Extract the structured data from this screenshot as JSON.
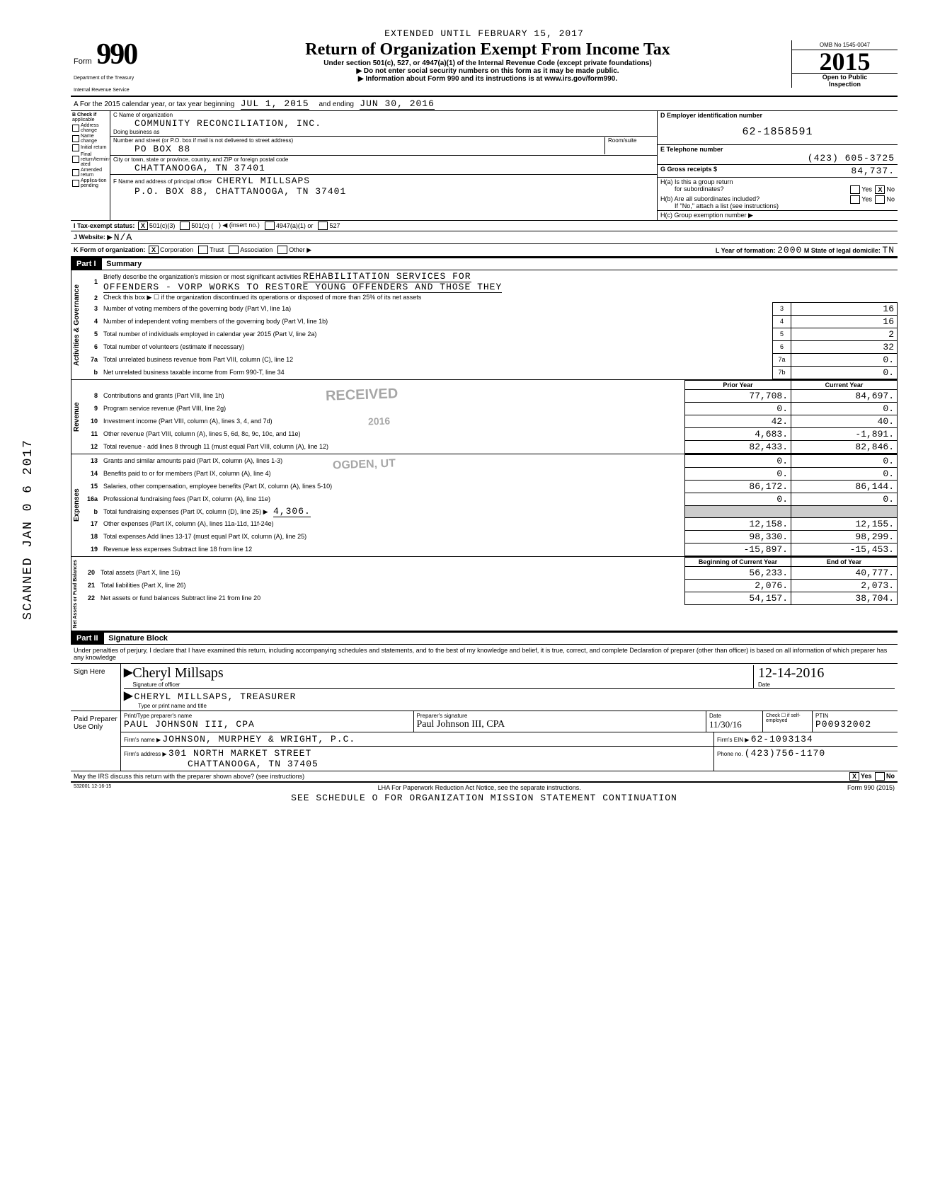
{
  "header": {
    "extension": "EXTENDED UNTIL FEBRUARY 15, 2017",
    "form_label": "Form",
    "form_number": "990",
    "title": "Return of Organization Exempt From Income Tax",
    "subtitle": "Under section 501(c), 527, or 4947(a)(1) of the Internal Revenue Code (except private foundations)",
    "bullet1": "▶ Do not enter social security numbers on this form as it may be made public.",
    "bullet2": "▶ Information about Form 990 and its instructions is at www.irs.gov/form990.",
    "dept1": "Department of the Treasury",
    "dept2": "Internal Revenue Service",
    "omb": "OMB No 1545-0047",
    "year": "2015",
    "open1": "Open to Public",
    "open2": "Inspection"
  },
  "line_a": {
    "prefix": "A For the 2015 calendar year, or tax year beginning",
    "begin": "JUL 1, 2015",
    "mid": "and ending",
    "end": "JUN 30, 2016"
  },
  "col_b": {
    "header1": "B Check if",
    "header2": "applicable",
    "items": [
      "Address change",
      "Name change",
      "Initial return",
      "Final return/termin-ated",
      "Amended return",
      "Applica-tion pending"
    ]
  },
  "col_c": {
    "c_label": "C Name of organization",
    "org_name": "COMMUNITY RECONCILIATION, INC.",
    "dba_label": "Doing business as",
    "addr_label": "Number and street (or P.O. box if mail is not delivered to street address)",
    "room_label": "Room/suite",
    "address": "PO BOX 88",
    "city_label": "City or town, state or province, country, and ZIP or foreign postal code",
    "city": "CHATTANOOGA, TN  37401",
    "f_label": "F Name and address of principal officer",
    "f_name": "CHERYL MILLSAPS",
    "f_addr": "P.O. BOX 88, CHATTANOOGA, TN  37401"
  },
  "col_right": {
    "d_label": "D Employer identification number",
    "ein": "62-1858591",
    "e_label": "E Telephone number",
    "phone": "(423) 605-3725",
    "g_label": "G Gross receipts $",
    "g_val": "84,737.",
    "ha_label": "H(a) Is this a group return",
    "ha_label2": "for subordinates?",
    "hb_label": "H(b) Are all subordinates included?",
    "hb_note": "If \"No,\" attach a list (see instructions)",
    "hc_label": "H(c) Group exemption number ▶"
  },
  "line_i": {
    "label": "I Tax-exempt status:",
    "opt1": "501(c)(3)",
    "opt2": "501(c) (",
    "opt2b": ") ◀ (insert no.)",
    "opt3": "4947(a)(1) or",
    "opt4": "527"
  },
  "line_j": {
    "label": "J Website: ▶",
    "val": "N/A"
  },
  "line_k": {
    "label": "K Form of organization:",
    "opts": [
      "Corporation",
      "Trust",
      "Association",
      "Other ▶"
    ],
    "l_label": "L Year of formation:",
    "l_val": "2000",
    "m_label": "M State of legal domicile:",
    "m_val": "TN"
  },
  "part1": {
    "header": "Part I",
    "title": "Summary",
    "line1_label": "Briefly describe the organization's mission or most significant activities",
    "line1_val": "REHABILITATION SERVICES FOR",
    "line1_val2": "OFFENDERS - VORP WORKS TO RESTORE YOUNG OFFENDERS AND THOSE THEY",
    "line2": "Check this box ▶ ☐ if the organization discontinued its operations or disposed of more than 25% of its net assets",
    "rows_gov": [
      {
        "n": "3",
        "label": "Number of voting members of the governing body (Part VI, line 1a)",
        "box": "3",
        "val": "16"
      },
      {
        "n": "4",
        "label": "Number of independent voting members of the governing body (Part VI, line 1b)",
        "box": "4",
        "val": "16"
      },
      {
        "n": "5",
        "label": "Total number of individuals employed in calendar year 2015 (Part V, line 2a)",
        "box": "5",
        "val": "2"
      },
      {
        "n": "6",
        "label": "Total number of volunteers (estimate if necessary)",
        "box": "6",
        "val": "32"
      },
      {
        "n": "7a",
        "label": "Total unrelated business revenue from Part VIII, column (C), line 12",
        "box": "7a",
        "val": "0."
      },
      {
        "n": "b",
        "label": "Net unrelated business taxable income from Form 990-T, line 34",
        "box": "7b",
        "val": "0."
      }
    ],
    "col_hdr_prior": "Prior Year",
    "col_hdr_curr": "Current Year",
    "rows_rev": [
      {
        "n": "8",
        "label": "Contributions and grants (Part VIII, line 1h)",
        "p": "77,708.",
        "c": "84,697."
      },
      {
        "n": "9",
        "label": "Program service revenue (Part VIII, line 2g)",
        "p": "0.",
        "c": "0."
      },
      {
        "n": "10",
        "label": "Investment income (Part VIII, column (A), lines 3, 4, and 7d)",
        "p": "42.",
        "c": "40."
      },
      {
        "n": "11",
        "label": "Other revenue (Part VIII, column (A), lines 5, 6d, 8c, 9c, 10c, and 11e)",
        "p": "4,683.",
        "c": "-1,891."
      },
      {
        "n": "12",
        "label": "Total revenue - add lines 8 through 11 (must equal Part VIII, column (A), line 12)",
        "p": "82,433.",
        "c": "82,846."
      }
    ],
    "rows_exp": [
      {
        "n": "13",
        "label": "Grants and similar amounts paid (Part IX, column (A), lines 1-3)",
        "p": "0.",
        "c": "0."
      },
      {
        "n": "14",
        "label": "Benefits paid to or for members (Part IX, column (A), line 4)",
        "p": "0.",
        "c": "0."
      },
      {
        "n": "15",
        "label": "Salaries, other compensation, employee benefits (Part IX, column (A), lines 5-10)",
        "p": "86,172.",
        "c": "86,144."
      },
      {
        "n": "16a",
        "label": "Professional fundraising fees (Part IX, column (A), line 11e)",
        "p": "0.",
        "c": "0."
      },
      {
        "n": "b",
        "label": "Total fundraising expenses (Part IX, column (D), line 25)   ▶",
        "extra": "4,306.",
        "p": "",
        "c": "",
        "shade": true
      },
      {
        "n": "17",
        "label": "Other expenses (Part IX, column (A), lines 11a-11d, 11f-24e)",
        "p": "12,158.",
        "c": "12,155."
      },
      {
        "n": "18",
        "label": "Total expenses Add lines 13-17 (must equal Part IX, column (A), line 25)",
        "p": "98,330.",
        "c": "98,299."
      },
      {
        "n": "19",
        "label": "Revenue less expenses Subtract line 18 from line 12",
        "p": "-15,897.",
        "c": "-15,453."
      }
    ],
    "col_hdr_begin": "Beginning of Current Year",
    "col_hdr_end": "End of Year",
    "rows_net": [
      {
        "n": "20",
        "label": "Total assets (Part X, line 16)",
        "p": "56,233.",
        "c": "40,777."
      },
      {
        "n": "21",
        "label": "Total liabilities (Part X, line 26)",
        "p": "2,076.",
        "c": "2,073."
      },
      {
        "n": "22",
        "label": "Net assets or fund balances Subtract line 21 from line 20",
        "p": "54,157.",
        "c": "38,704."
      }
    ],
    "side_labels": {
      "gov": "Activities & Governance",
      "rev": "Revenue",
      "exp": "Expenses",
      "net": "Net Assets or Fund Balances"
    },
    "stamp1": "RECEIVED",
    "stamp2": "2016",
    "stamp3": "OGDEN, UT"
  },
  "part2": {
    "header": "Part II",
    "title": "Signature Block",
    "decl": "Under penalties of perjury, I declare that I have examined this return, including accompanying schedules and statements, and to the best of my knowledge and belief, it is true, correct, and complete Declaration of preparer (other than officer) is based on all information of which preparer has any knowledge",
    "sign_here": "Sign Here",
    "sig_script": "Cheryl Millsaps",
    "sig_label": "Signature of officer",
    "sig_date": "12-14-2016",
    "date_label": "Date",
    "officer": "CHERYL MILLSAPS, TREASURER",
    "officer_label": "Type or print name and title",
    "paid_label": "Paid Preparer Use Only",
    "prep_name_label": "Print/Type preparer's name",
    "prep_name": "PAUL JOHNSON III, CPA",
    "prep_sig_label": "Preparer's signature",
    "prep_sig": "Paul Johnson III, CPA",
    "prep_date": "11/30/16",
    "check_label": "Check ☐ if self-employed",
    "ptin_label": "PTIN",
    "ptin": "P00932002",
    "firm_name_label": "Firm's name ▶",
    "firm_name": "JOHNSON, MURPHEY & WRIGHT, P.C.",
    "firm_ein_label": "Firm's EIN ▶",
    "firm_ein": "62-1093134",
    "firm_addr_label": "Firm's address ▶",
    "firm_addr1": "301 NORTH MARKET STREET",
    "firm_addr2": "CHATTANOOGA, TN 37405",
    "phone_label": "Phone no.",
    "phone": "(423)756-1170",
    "discuss": "May the IRS discuss this return with the preparer shown above? (see instructions)",
    "footer_left": "532001 12-16-15",
    "footer_mid": "LHA For Paperwork Reduction Act Notice, see the separate instructions.",
    "footer_right": "Form 990 (2015)",
    "footer_note": "SEE SCHEDULE O FOR ORGANIZATION MISSION STATEMENT CONTINUATION"
  },
  "margin_note": "SCANNED JAN 0 6 2017",
  "colors": {
    "black": "#000000",
    "shade": "#cccccc"
  }
}
